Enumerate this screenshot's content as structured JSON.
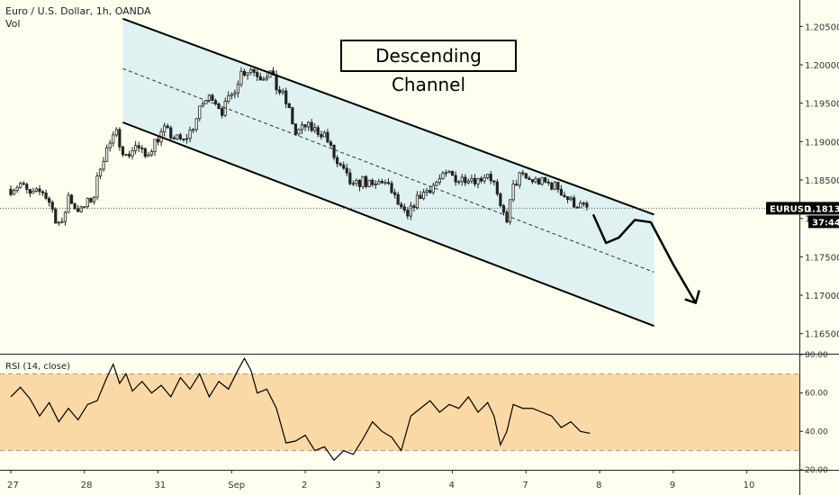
{
  "header": {
    "title": "Euro / U.S. Dollar, 1h, OANDA",
    "vol": "Vol"
  },
  "annotation": "Descending Channel",
  "rsi_label": "RSI (14, close)",
  "price_tag": {
    "symbol": "EURUSD",
    "value": "1.18132",
    "countdown": "37:44"
  },
  "colors": {
    "background": "#fffff0",
    "channel_fill": "#dff1f1",
    "candle": "#222222",
    "rsi_band": "#fad9a6",
    "rsi_line": "#000000",
    "tag": "#000000"
  },
  "chart_data": [
    {
      "type": "candlestick",
      "ylim": [
        1.1625,
        1.2075
      ],
      "y_ticks": [
        "1.20500",
        "1.20000",
        "1.19500",
        "1.19000",
        "1.18500",
        "1.18000",
        "1.17500",
        "1.17000",
        "1.16500"
      ],
      "x_ticks": [
        "27",
        "28",
        "31",
        "Sep",
        "2",
        "3",
        "4",
        "7",
        "8",
        "9",
        "10"
      ],
      "x_tick_index": [
        0,
        23,
        46,
        69,
        92,
        115,
        138,
        161,
        184,
        207,
        230
      ],
      "last_price": 1.18132,
      "close_path": [
        [
          0,
          1.1838
        ],
        [
          3,
          1.1845
        ],
        [
          6,
          1.183
        ],
        [
          10,
          1.1835
        ],
        [
          12,
          1.1822
        ],
        [
          14,
          1.18
        ],
        [
          16,
          1.179
        ],
        [
          18,
          1.183
        ],
        [
          20,
          1.1815
        ],
        [
          22,
          1.181
        ],
        [
          24,
          1.182
        ],
        [
          26,
          1.183
        ],
        [
          28,
          1.187
        ],
        [
          30,
          1.189
        ],
        [
          33,
          1.191
        ],
        [
          36,
          1.188
        ],
        [
          39,
          1.1895
        ],
        [
          42,
          1.188
        ],
        [
          45,
          1.19
        ],
        [
          48,
          1.1915
        ],
        [
          51,
          1.1905
        ],
        [
          54,
          1.19
        ],
        [
          57,
          1.192
        ],
        [
          60,
          1.195
        ],
        [
          63,
          1.196
        ],
        [
          66,
          1.194
        ],
        [
          69,
          1.196
        ],
        [
          72,
          1.199
        ],
        [
          75,
          1.1995
        ],
        [
          78,
          1.1985
        ],
        [
          81,
          1.199
        ],
        [
          83,
          1.197
        ],
        [
          85,
          1.196
        ],
        [
          87,
          1.194
        ],
        [
          89,
          1.191
        ],
        [
          92,
          1.192
        ],
        [
          95,
          1.1915
        ],
        [
          98,
          1.191
        ],
        [
          100,
          1.189
        ],
        [
          102,
          1.187
        ],
        [
          104,
          1.186
        ],
        [
          107,
          1.184
        ],
        [
          110,
          1.185
        ],
        [
          113,
          1.184
        ],
        [
          116,
          1.185
        ],
        [
          119,
          1.1835
        ],
        [
          122,
          1.181
        ],
        [
          124,
          1.18
        ],
        [
          126,
          1.182
        ],
        [
          128,
          1.183
        ],
        [
          131,
          1.184
        ],
        [
          134,
          1.185
        ],
        [
          137,
          1.1858
        ],
        [
          140,
          1.185
        ],
        [
          143,
          1.1855
        ],
        [
          146,
          1.185
        ],
        [
          149,
          1.186
        ],
        [
          151,
          1.1845
        ],
        [
          153,
          1.181
        ],
        [
          155,
          1.18
        ],
        [
          157,
          1.184
        ],
        [
          159,
          1.1855
        ],
        [
          162,
          1.185
        ],
        [
          165,
          1.1848
        ],
        [
          168,
          1.1845
        ],
        [
          171,
          1.184
        ],
        [
          173,
          1.183
        ],
        [
          175,
          1.1822
        ],
        [
          177,
          1.1818
        ],
        [
          180,
          1.1813
        ]
      ],
      "channel": {
        "upper": [
          [
            35,
            1.206
          ],
          [
            201,
            1.1805
          ]
        ],
        "middle": [
          [
            35,
            1.1995
          ],
          [
            201,
            1.173
          ]
        ],
        "lower": [
          [
            35,
            1.1925
          ],
          [
            201,
            1.166
          ]
        ]
      },
      "forecast_arrow": [
        [
          182,
          1.1805
        ],
        [
          186,
          1.1768
        ],
        [
          190,
          1.1775
        ],
        [
          195,
          1.1798
        ],
        [
          200,
          1.1795
        ],
        [
          207,
          1.174
        ],
        [
          214,
          1.169
        ]
      ]
    },
    {
      "type": "line",
      "name": "RSI (14, close)",
      "ylim": [
        20,
        80
      ],
      "y_ticks": [
        "80.00",
        "60.00",
        "40.00",
        "20.00"
      ],
      "band": [
        30,
        70
      ],
      "x": [
        0,
        3,
        6,
        9,
        12,
        15,
        18,
        21,
        24,
        27,
        30,
        32,
        34,
        36,
        38,
        41,
        44,
        47,
        50,
        53,
        56,
        59,
        62,
        65,
        68,
        71,
        73,
        75,
        77,
        80,
        83,
        86,
        89,
        92,
        95,
        98,
        101,
        104,
        107,
        110,
        113,
        116,
        119,
        122,
        125,
        128,
        131,
        134,
        137,
        140,
        143,
        146,
        149,
        151,
        153,
        155,
        157,
        160,
        163,
        166,
        169,
        172,
        175,
        178,
        181
      ],
      "values": [
        58,
        63,
        57,
        48,
        55,
        45,
        52,
        46,
        54,
        56,
        68,
        75,
        65,
        70,
        61,
        66,
        60,
        64,
        58,
        68,
        62,
        70,
        58,
        66,
        62,
        72,
        78,
        72,
        60,
        62,
        52,
        34,
        35,
        38,
        30,
        32,
        25,
        30,
        28,
        36,
        45,
        40,
        37,
        30,
        48,
        52,
        56,
        50,
        54,
        52,
        58,
        50,
        55,
        48,
        33,
        40,
        54,
        52,
        52,
        50,
        48,
        42,
        45,
        40,
        39
      ]
    }
  ]
}
